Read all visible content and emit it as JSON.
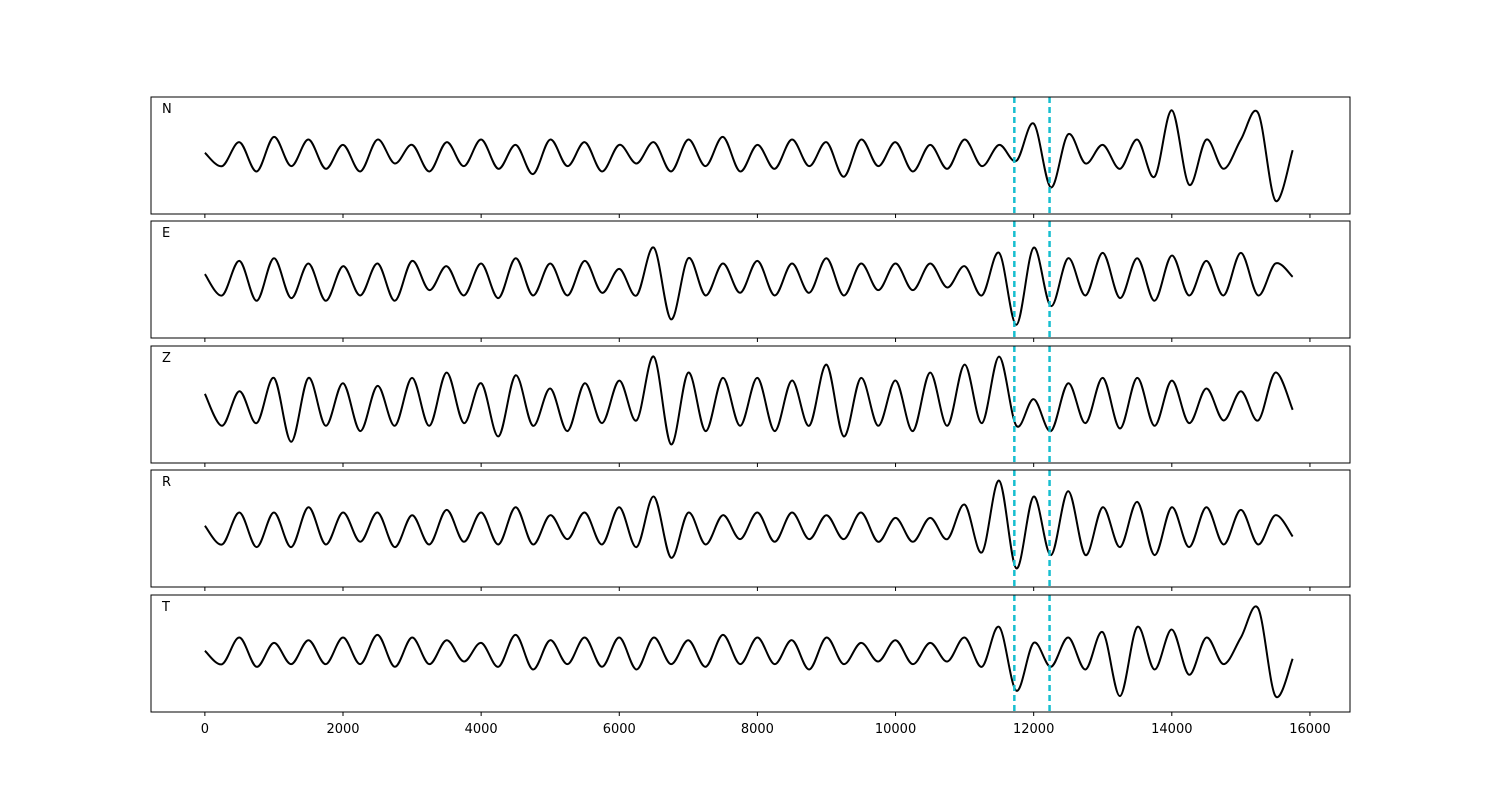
{
  "chart_data": {
    "type": "line",
    "title": "",
    "xlabel": "",
    "ylabel": "",
    "xlim": [
      -780,
      16580
    ],
    "ylim": [
      -1.1,
      1.1
    ],
    "grid": false,
    "x_ticks": [
      0,
      2000,
      4000,
      6000,
      8000,
      10000,
      12000,
      14000,
      16000
    ],
    "x_step": 250,
    "x_start": 0,
    "line_color": "#000000",
    "marker_color": "#17becf",
    "markers": [
      11720,
      12230
    ],
    "panels": [
      {
        "label": "N",
        "values": [
          0.05,
          -0.2,
          0.25,
          -0.3,
          0.35,
          -0.2,
          0.3,
          -0.25,
          0.2,
          -0.3,
          0.3,
          -0.15,
          0.2,
          -0.3,
          0.25,
          -0.2,
          0.3,
          -0.25,
          0.2,
          -0.35,
          0.3,
          -0.2,
          0.25,
          -0.3,
          0.2,
          -0.15,
          0.25,
          -0.3,
          0.3,
          -0.2,
          0.35,
          -0.3,
          0.2,
          -0.25,
          0.3,
          -0.2,
          0.25,
          -0.4,
          0.3,
          -0.2,
          0.25,
          -0.3,
          0.2,
          -0.25,
          0.3,
          -0.2,
          0.2,
          -0.1,
          0.6,
          -0.6,
          0.4,
          -0.15,
          0.2,
          -0.25,
          0.3,
          -0.4,
          0.85,
          -0.55,
          0.3,
          -0.25,
          0.3,
          0.8,
          -0.85,
          0.1
        ]
      },
      {
        "label": "E",
        "values": [
          0.1,
          -0.3,
          0.35,
          -0.4,
          0.4,
          -0.35,
          0.3,
          -0.4,
          0.25,
          -0.3,
          0.3,
          -0.4,
          0.35,
          -0.2,
          0.25,
          -0.3,
          0.3,
          -0.35,
          0.4,
          -0.3,
          0.3,
          -0.3,
          0.35,
          -0.25,
          0.2,
          -0.3,
          0.6,
          -0.75,
          0.4,
          -0.3,
          0.3,
          -0.25,
          0.35,
          -0.3,
          0.3,
          -0.25,
          0.4,
          -0.3,
          0.3,
          -0.2,
          0.3,
          -0.2,
          0.3,
          -0.15,
          0.25,
          -0.3,
          0.5,
          -0.85,
          0.6,
          -0.5,
          0.4,
          -0.3,
          0.5,
          -0.35,
          0.4,
          -0.4,
          0.45,
          -0.3,
          0.35,
          -0.3,
          0.5,
          -0.3,
          0.3,
          0.05
        ]
      },
      {
        "label": "Z",
        "values": [
          0.2,
          -0.4,
          0.25,
          -0.35,
          0.5,
          -0.7,
          0.5,
          -0.4,
          0.4,
          -0.5,
          0.35,
          -0.4,
          0.5,
          -0.4,
          0.6,
          -0.35,
          0.4,
          -0.6,
          0.55,
          -0.4,
          0.3,
          -0.5,
          0.4,
          -0.35,
          0.45,
          -0.3,
          0.9,
          -0.75,
          0.6,
          -0.5,
          0.5,
          -0.4,
          0.5,
          -0.5,
          0.45,
          -0.4,
          0.75,
          -0.6,
          0.5,
          -0.4,
          0.45,
          -0.5,
          0.6,
          -0.4,
          0.75,
          -0.35,
          0.9,
          -0.4,
          0.1,
          -0.5,
          0.4,
          -0.35,
          0.5,
          -0.45,
          0.5,
          -0.4,
          0.45,
          -0.35,
          0.3,
          -0.3,
          0.25,
          -0.3,
          0.6,
          -0.1
        ]
      },
      {
        "label": "R",
        "values": [
          0.05,
          -0.3,
          0.3,
          -0.35,
          0.3,
          -0.35,
          0.4,
          -0.3,
          0.3,
          -0.25,
          0.3,
          -0.35,
          0.25,
          -0.3,
          0.35,
          -0.25,
          0.3,
          -0.3,
          0.4,
          -0.3,
          0.25,
          -0.2,
          0.3,
          -0.3,
          0.4,
          -0.35,
          0.6,
          -0.55,
          0.3,
          -0.3,
          0.25,
          -0.2,
          0.3,
          -0.25,
          0.3,
          -0.2,
          0.25,
          -0.2,
          0.3,
          -0.25,
          0.2,
          -0.25,
          0.2,
          -0.2,
          0.45,
          -0.45,
          0.9,
          -0.75,
          0.6,
          -0.5,
          0.7,
          -0.5,
          0.4,
          -0.35,
          0.5,
          -0.5,
          0.4,
          -0.35,
          0.4,
          -0.3,
          0.35,
          -0.3,
          0.25,
          -0.15
        ]
      },
      {
        "label": "T",
        "values": [
          0.05,
          -0.2,
          0.3,
          -0.25,
          0.2,
          -0.2,
          0.25,
          -0.2,
          0.3,
          -0.2,
          0.35,
          -0.25,
          0.3,
          -0.2,
          0.25,
          -0.15,
          0.2,
          -0.25,
          0.35,
          -0.3,
          0.25,
          -0.2,
          0.3,
          -0.25,
          0.3,
          -0.3,
          0.3,
          -0.2,
          0.25,
          -0.25,
          0.35,
          -0.2,
          0.3,
          -0.2,
          0.25,
          -0.3,
          0.3,
          -0.2,
          0.2,
          -0.15,
          0.25,
          -0.2,
          0.2,
          -0.15,
          0.3,
          -0.25,
          0.5,
          -0.7,
          0.2,
          -0.25,
          0.3,
          -0.3,
          0.4,
          -0.8,
          0.5,
          -0.3,
          0.45,
          -0.4,
          0.3,
          -0.2,
          0.3,
          0.85,
          -0.8,
          -0.1
        ]
      }
    ]
  }
}
